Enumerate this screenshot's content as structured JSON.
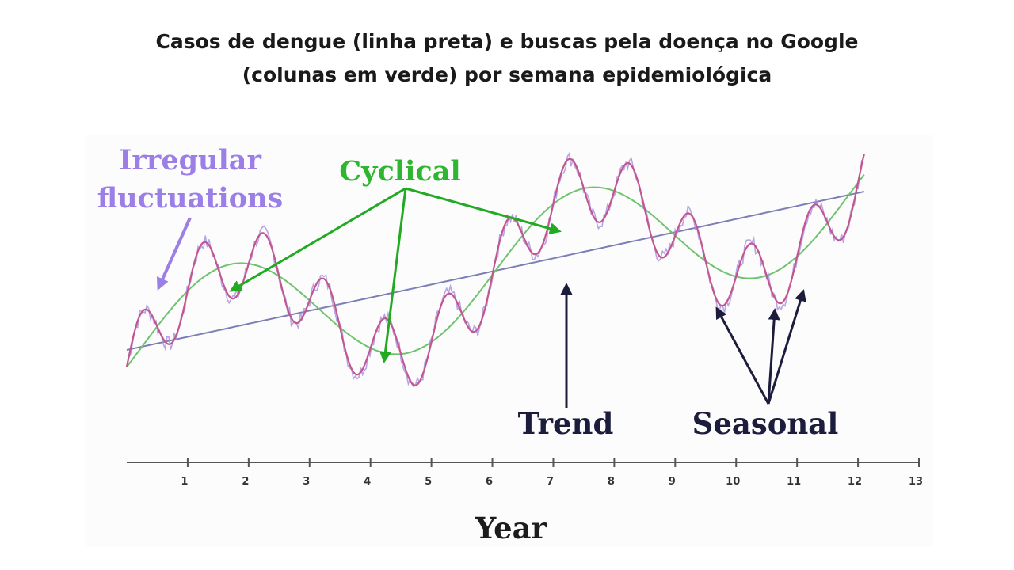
{
  "title_line1": "Casos de dengue (linha preta) e buscas pela doença no Google",
  "title_line2": "(colunas em verde) por semana epidemiológica",
  "chart_data": {
    "type": "line",
    "xlabel": "Year",
    "ylabel": "",
    "xlim": [
      0,
      13
    ],
    "x_ticks": [
      1,
      2,
      3,
      4,
      5,
      6,
      7,
      8,
      9,
      10,
      11,
      12,
      13
    ],
    "series": [
      {
        "name": "Trend",
        "kind": "linear",
        "x": [
          0,
          12.1
        ],
        "y": [
          -0.9,
          1.6
        ]
      },
      {
        "name": "Cyclical",
        "kind": "sinusoid",
        "period_years": 5.8,
        "amplitude": 1.0,
        "peak_years": [
          1.7,
          7.5
        ],
        "trough_years": [
          4.6,
          10.5
        ]
      },
      {
        "name": "Seasonal",
        "kind": "sinusoid",
        "period_years": 1.0,
        "amplitude": 0.55
      },
      {
        "name": "Irregular fluctuations",
        "kind": "noise",
        "amplitude": 0.12
      }
    ],
    "annotations": {
      "irregular": "Irregular fluctuations",
      "irregular_line1": "Irregular",
      "irregular_line2": "fluctuations",
      "cyclical": "Cyclical",
      "trend": "Trend",
      "seasonal": "Seasonal"
    },
    "colors": {
      "trend": "#7b7fb5",
      "cyclical": "#6fc36f",
      "combined": "#c2568e",
      "irregular": "#a58de0",
      "cyclical_label": "#2fb52f",
      "irregular_label": "#9b7fe6",
      "dark_label": "#1c1c3c"
    }
  }
}
